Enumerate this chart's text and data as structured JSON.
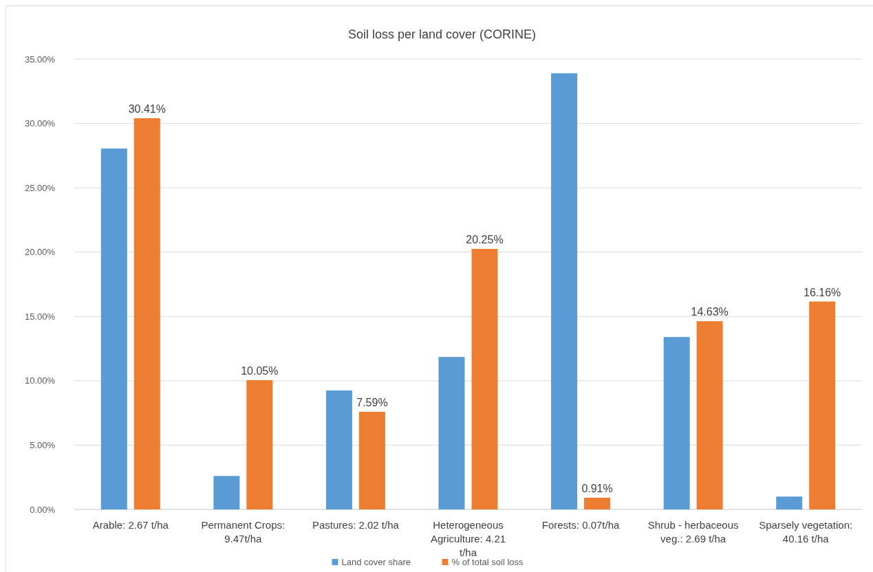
{
  "chart_data": {
    "type": "bar",
    "title": "Soil loss per land cover (CORINE)",
    "categories": [
      "Arable: 2.67 t/ha",
      "Permanent Crops: 9.47t/ha",
      "Pastures: 2.02 t/ha",
      "Heterogeneous Agriculture: 4.21 t/ha",
      "Forests: 0.07t/ha",
      "Shrub - herbaceous veg.: 2.69 t/ha",
      "Sparsely vegetation: 40.16 t/ha"
    ],
    "series": [
      {
        "name": "Land cover share",
        "color": "#5b9bd5",
        "values": [
          28.05,
          2.6,
          9.25,
          11.85,
          33.9,
          13.4,
          1.0
        ]
      },
      {
        "name": "% of total soil loss",
        "color": "#ed7d31",
        "values": [
          30.41,
          10.05,
          7.59,
          20.25,
          0.91,
          14.63,
          16.16
        ],
        "value_labels": [
          "30.41%",
          "10.05%",
          "7.59%",
          "20.25%",
          "0.91%",
          "14.63%",
          "16.16%"
        ]
      }
    ],
    "ylim": [
      0,
      35
    ],
    "yticks": [
      {
        "value": 0,
        "label": "0.00%"
      },
      {
        "value": 5,
        "label": "5.00%"
      },
      {
        "value": 10,
        "label": "10.00%"
      },
      {
        "value": 15,
        "label": "15.00%"
      },
      {
        "value": 20,
        "label": "20.00%"
      },
      {
        "value": 25,
        "label": "25.00%"
      },
      {
        "value": 30,
        "label": "30.00%"
      },
      {
        "value": 35,
        "label": "35.00%"
      }
    ],
    "grid": "y",
    "legend": "bottom"
  }
}
